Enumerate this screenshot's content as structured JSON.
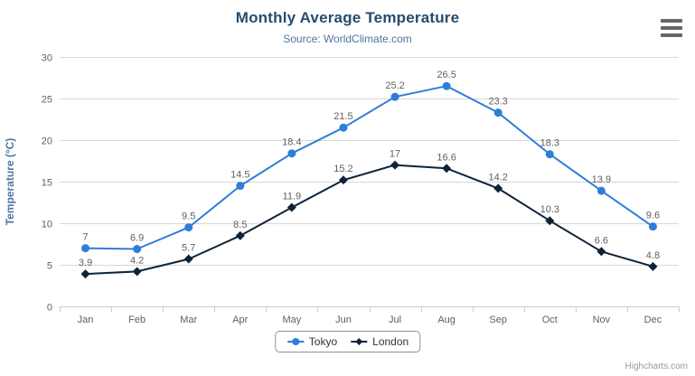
{
  "credits": "Highcharts.com",
  "context_menu_tooltip": "Chart context menu",
  "chart_data": {
    "type": "line",
    "title": "Monthly Average Temperature",
    "subtitle": "Source: WorldClimate.com",
    "xlabel": "",
    "ylabel": "Temperature (°C)",
    "categories": [
      "Jan",
      "Feb",
      "Mar",
      "Apr",
      "May",
      "Jun",
      "Jul",
      "Aug",
      "Sep",
      "Oct",
      "Nov",
      "Dec"
    ],
    "series": [
      {
        "name": "Tokyo",
        "color": "#2f7ed8",
        "marker": "circle",
        "values": [
          7,
          6.9,
          9.5,
          14.5,
          18.4,
          21.5,
          25.2,
          26.5,
          23.3,
          18.3,
          13.9,
          9.6
        ]
      },
      {
        "name": "London",
        "color": "#0d233a",
        "marker": "diamond",
        "values": [
          3.9,
          4.2,
          5.7,
          8.5,
          11.9,
          15.2,
          17,
          16.6,
          14.2,
          10.3,
          6.6,
          4.8
        ]
      }
    ],
    "ylim": [
      0,
      30
    ],
    "ytick_interval": 5,
    "grid": true,
    "legend_position": "bottom",
    "data_labels": true,
    "colors": {
      "grid": "#d8d8d8",
      "axis_line": "#c0d0e0",
      "axis_label": "#606060",
      "data_label": "#606060",
      "axis_title": "#4d759e",
      "title": "#274b6d",
      "subtitle": "#4d759e"
    }
  }
}
